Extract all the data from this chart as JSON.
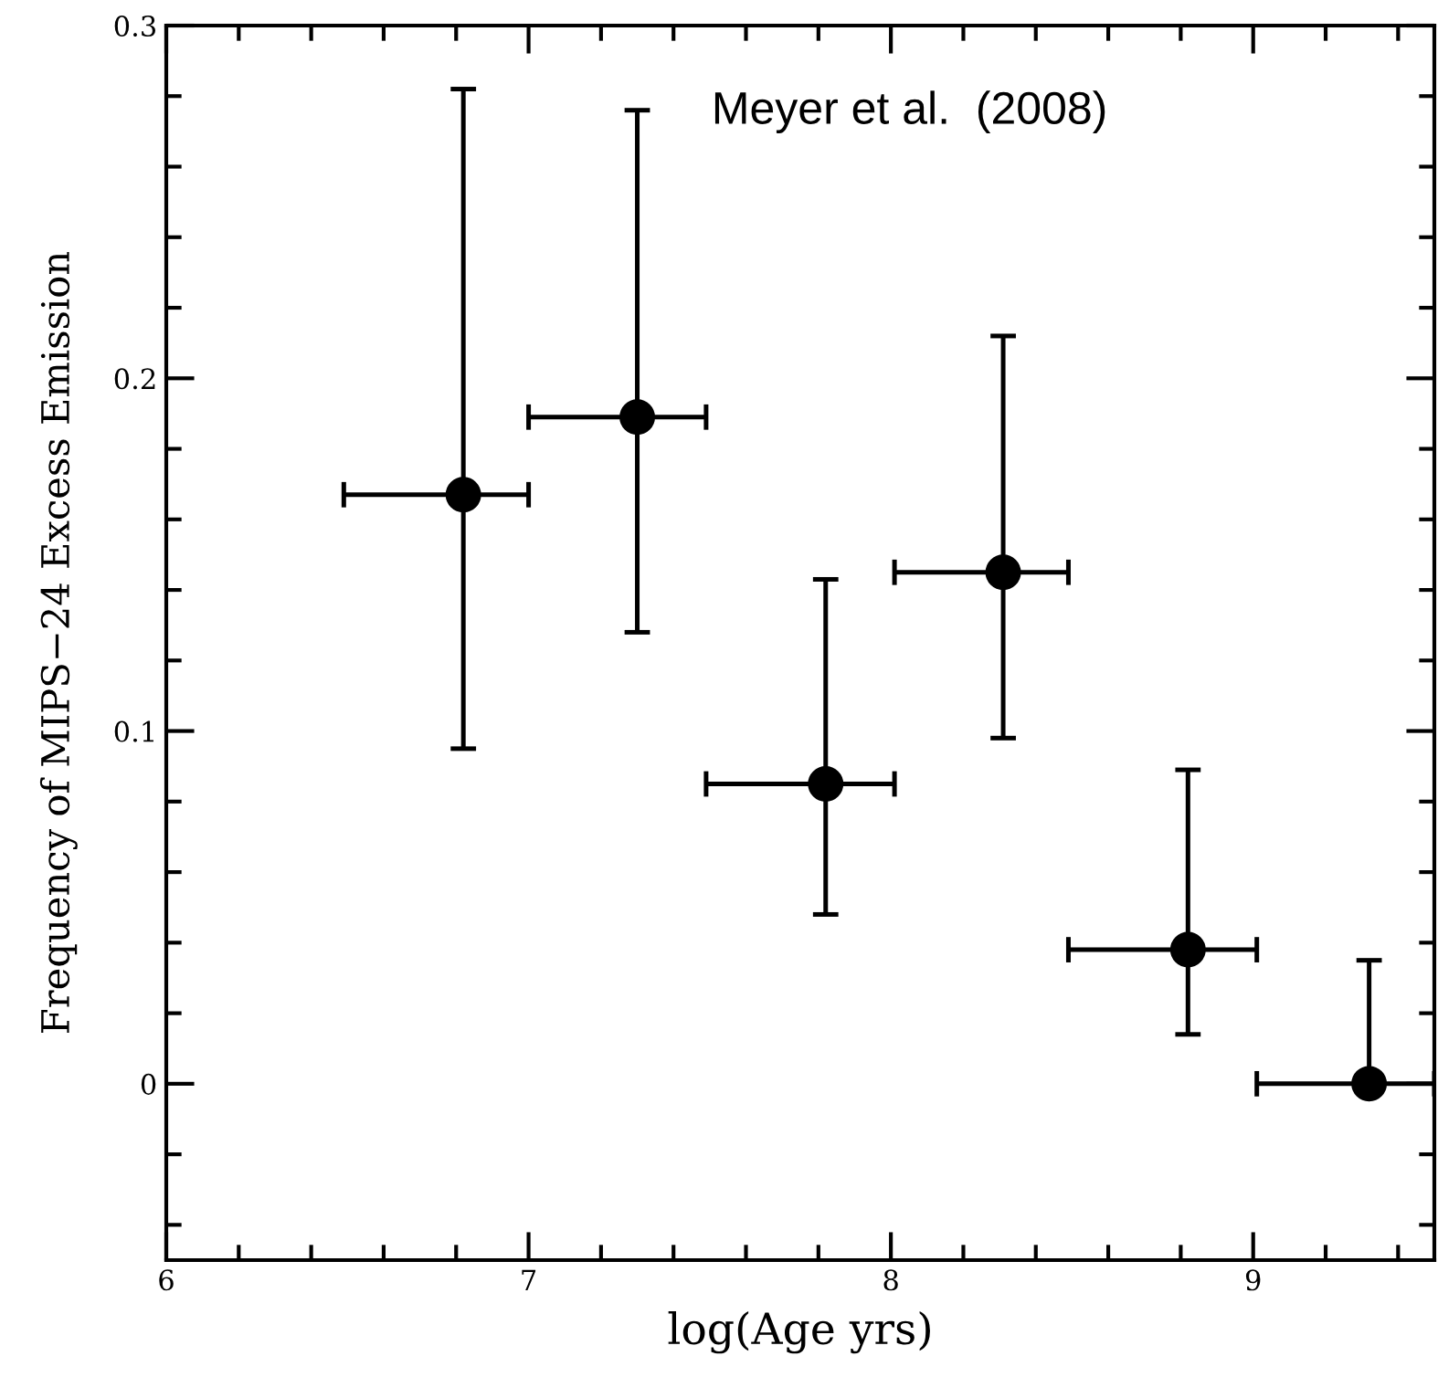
{
  "chart_data": {
    "type": "scatter",
    "xlabel": "log(Age yrs)",
    "ylabel": "Frequency of MIPS−24 Excess Emission",
    "annotations": [
      "Meyer et al.  (2008)"
    ],
    "x": [
      6.82,
      7.3,
      7.82,
      8.31,
      8.82,
      9.32
    ],
    "values": [
      0.167,
      0.189,
      0.085,
      0.145,
      0.038,
      0.0
    ],
    "errors": [
      [
        0.095,
        0.282
      ],
      [
        0.128,
        0.276
      ],
      [
        0.048,
        0.143
      ],
      [
        0.098,
        0.212
      ],
      [
        0.014,
        0.089
      ],
      [
        0.0,
        0.035
      ]
    ],
    "xerrors": [
      [
        6.49,
        7.0
      ],
      [
        7.0,
        7.49
      ],
      [
        7.49,
        8.01
      ],
      [
        8.01,
        8.49
      ],
      [
        8.49,
        9.01
      ],
      [
        9.01,
        9.5
      ]
    ],
    "color": "#000000",
    "marker": "circle",
    "xlim": [
      6,
      9.5
    ],
    "ylim": [
      -0.05,
      0.3
    ],
    "xticks": [
      6,
      {
        "value": 6.2,
        "label": null
      },
      {
        "value": 6.4,
        "label": null
      },
      {
        "value": 6.6,
        "label": null
      },
      {
        "value": 6.8,
        "label": null
      },
      7,
      {
        "value": 7.2,
        "label": null
      },
      {
        "value": 7.4,
        "label": null
      },
      {
        "value": 7.6,
        "label": null
      },
      {
        "value": 7.8,
        "label": null
      },
      8,
      {
        "value": 8.2,
        "label": null
      },
      {
        "value": 8.4,
        "label": null
      },
      {
        "value": 8.6,
        "label": null
      },
      {
        "value": 8.8,
        "label": null
      },
      9,
      {
        "value": 9.2,
        "label": null
      },
      {
        "value": 9.4,
        "label": null
      }
    ],
    "yticks": [
      {
        "value": -0.04,
        "label": null
      },
      {
        "value": -0.02,
        "label": null
      },
      0,
      {
        "value": 0.02,
        "label": null
      },
      {
        "value": 0.04,
        "label": null
      },
      {
        "value": 0.06,
        "label": null
      },
      {
        "value": 0.08,
        "label": null
      },
      0.1,
      {
        "value": 0.12,
        "label": null
      },
      {
        "value": 0.14,
        "label": null
      },
      {
        "value": 0.16,
        "label": null
      },
      {
        "value": 0.18,
        "label": null
      },
      0.2,
      {
        "value": 0.22,
        "label": null
      },
      {
        "value": 0.24,
        "label": null
      },
      {
        "value": 0.26,
        "label": null
      },
      {
        "value": 0.28,
        "label": null
      },
      0.3
    ],
    "grid": false,
    "legend": false
  }
}
